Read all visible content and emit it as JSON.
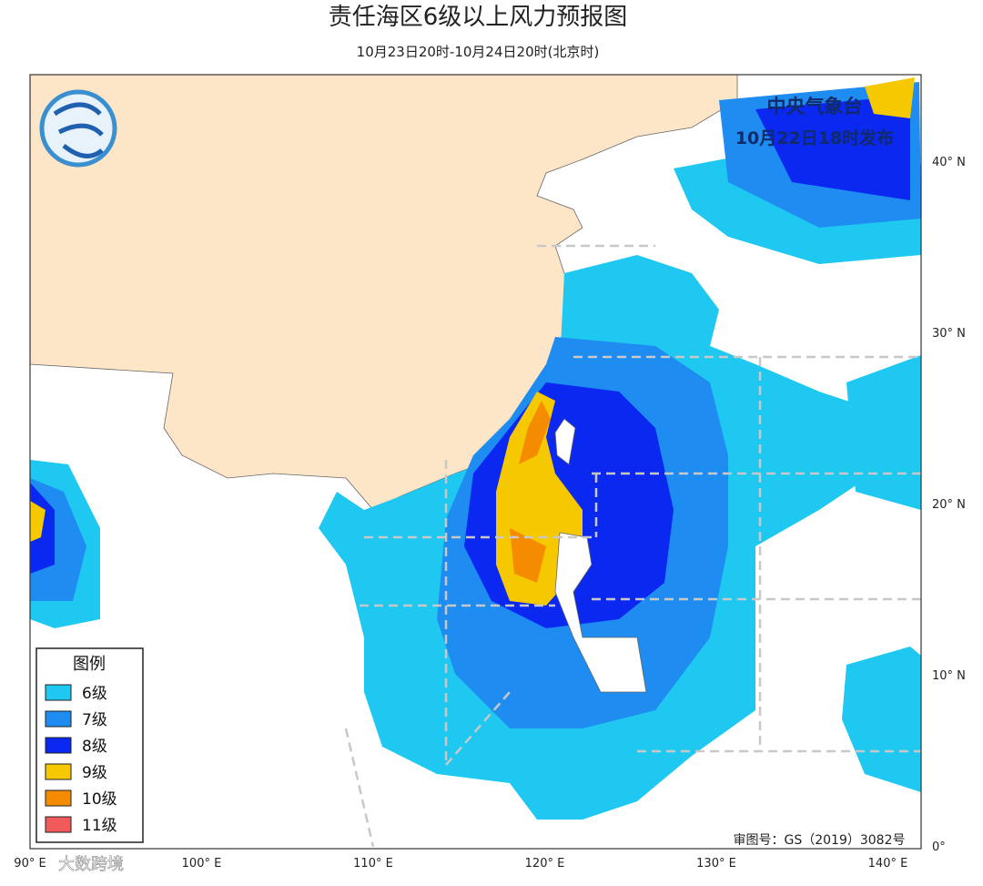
{
  "title": "责任海区6级以上风力预报图",
  "subtitle": "10月23日20时-10月24日20时(北京时)",
  "issuer": {
    "agency": "中央气象台",
    "issued": "10月22日18时发布"
  },
  "legend": {
    "title": "图例",
    "items": [
      {
        "label": "6级",
        "color": "#1ec8f0"
      },
      {
        "label": "7级",
        "color": "#1e8cf0"
      },
      {
        "label": "8级",
        "color": "#0a28f0"
      },
      {
        "label": "9级",
        "color": "#f5c800"
      },
      {
        "label": "10级",
        "color": "#f58c00"
      },
      {
        "label": "11级",
        "color": "#f05a5a"
      }
    ]
  },
  "lat_labels": [
    "40° N",
    "30° N",
    "20° N",
    "10° N",
    "0°"
  ],
  "lon_labels": [
    "90° E",
    "100° E",
    "110° E",
    "120° E",
    "130° E",
    "140° E"
  ],
  "map_number": "审图号：GS（2019）3082号",
  "watermark": "大数跨境"
}
